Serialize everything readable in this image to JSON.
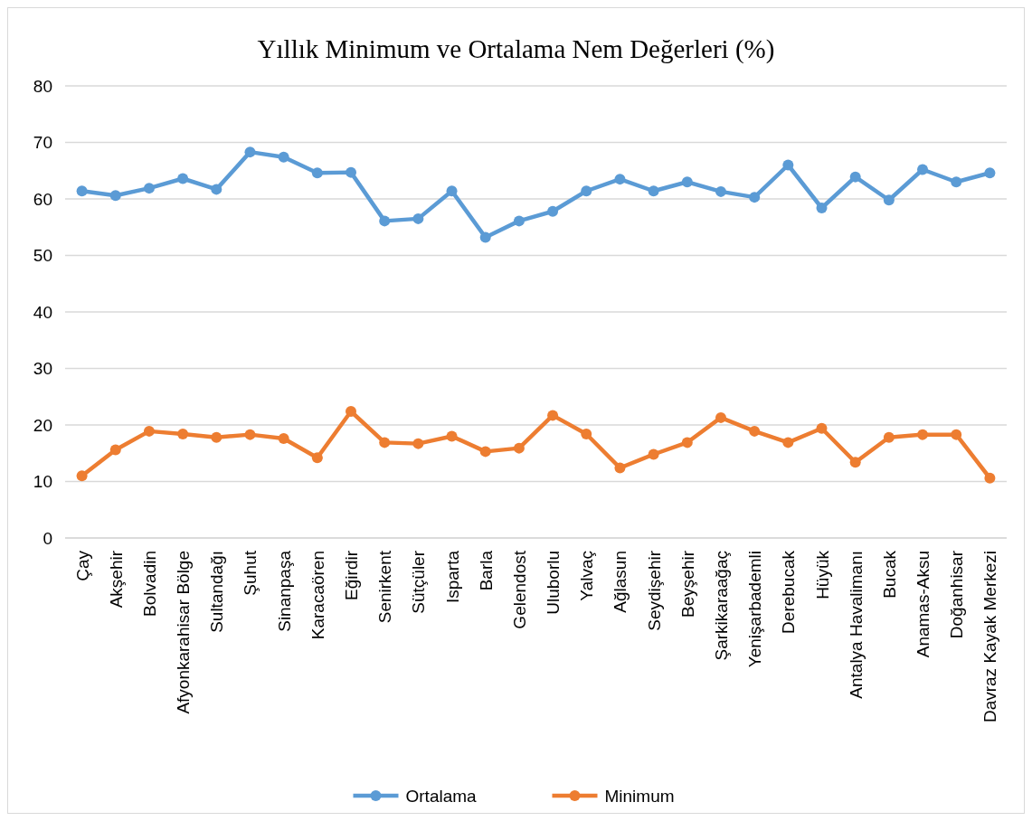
{
  "chart_data": {
    "type": "line",
    "title": "Yıllık Minimum ve Ortalama Nem Değerleri (%)",
    "categories": [
      "Çay",
      "Akşehir",
      "Bolvadin",
      "Afyonkarahisar Bölge",
      "Sultandağı",
      "Şuhut",
      "Sinanpaşa",
      "Karacaören",
      "Eğirdir",
      "Senirkent",
      "Sütçüler",
      "Isparta",
      "Barla",
      "Gelendost",
      "Uluborlu",
      "Yalvaç",
      "Ağlasun",
      "Seydişehir",
      "Beyşehir",
      "Şarkikaraağaç",
      "Yenişarbademli",
      "Derebucak",
      "Hüyük",
      "Antalya Havalimanı",
      "Bucak",
      "Anamas-Aksu",
      "Doğanhisar",
      "Davraz Kayak Merkezi"
    ],
    "series": [
      {
        "name": "Ortalama",
        "color": "#5b9bd5",
        "values": [
          61.4,
          60.6,
          61.9,
          63.6,
          61.7,
          68.3,
          67.4,
          64.6,
          64.7,
          56.1,
          56.5,
          61.4,
          53.2,
          56.1,
          57.8,
          61.4,
          63.5,
          61.4,
          63.0,
          61.3,
          60.3,
          66.0,
          58.4,
          63.9,
          59.8,
          65.2,
          63.0,
          64.6
        ]
      },
      {
        "name": "Minimum",
        "color": "#ed7d31",
        "values": [
          11.0,
          15.6,
          18.9,
          18.4,
          17.8,
          18.3,
          17.6,
          14.2,
          22.4,
          16.9,
          16.7,
          18.0,
          15.3,
          15.9,
          21.7,
          18.4,
          12.4,
          14.8,
          16.9,
          21.3,
          18.9,
          16.9,
          19.4,
          13.4,
          17.8,
          18.3,
          18.3,
          10.6
        ]
      }
    ],
    "ylim": [
      0,
      80
    ],
    "yticks": [
      0,
      10,
      20,
      30,
      40,
      50,
      60,
      70,
      80
    ],
    "grid": "y",
    "legend": "bottom",
    "marker": "circle",
    "line_style": "solid"
  }
}
